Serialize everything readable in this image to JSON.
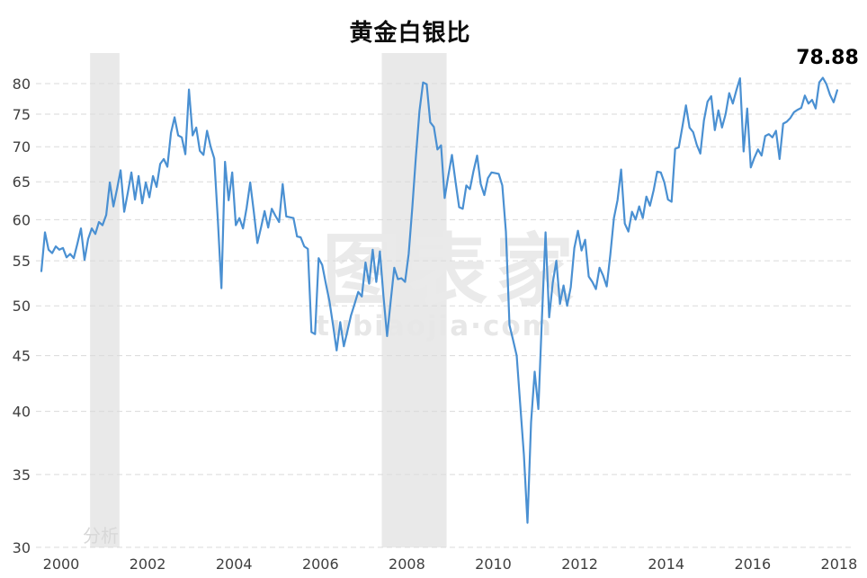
{
  "title": "黄金白银比",
  "current_value_label": "78.88",
  "watermark": {
    "main": "图表家",
    "sub": "tubiaojia·com",
    "corner": "分析"
  },
  "colors": {
    "line": "#4a90d2",
    "grid": "#dadada",
    "band": "#e9e9e9",
    "axis_label": "#3f3f3f",
    "title": "#0d0d0d",
    "background": "#ffffff"
  },
  "chart_data": {
    "type": "line",
    "title": "黄金白银比",
    "xlabel": "",
    "ylabel": "",
    "y_scale": "log",
    "ylim": [
      30,
      85
    ],
    "x_range_years": [
      2000.0,
      2018.5
    ],
    "grid": "horizontal-dashed",
    "legend": "none",
    "y_ticks": [
      80,
      75,
      70,
      65,
      60,
      55,
      50,
      45,
      40,
      35,
      30
    ],
    "x_ticks": [
      "2000",
      "2002",
      "2004",
      "2006",
      "2008",
      "2010",
      "2012",
      "2014",
      "2016",
      "2018"
    ],
    "recession_bands_years": [
      [
        2001.17,
        2001.85
      ],
      [
        2007.92,
        2009.42
      ]
    ],
    "points_per_year": 12,
    "x_start_year": 2000,
    "last_value": 78.88,
    "series": [
      {
        "name": "黄金白银比",
        "values": [
          53.8,
          58.4,
          56.3,
          55.9,
          56.7,
          56.3,
          56.5,
          55.4,
          55.8,
          55.3,
          57.0,
          58.9,
          55.1,
          57.6,
          58.9,
          58.2,
          59.7,
          59.3,
          60.6,
          64.9,
          61.7,
          64.0,
          66.6,
          61.0,
          63.5,
          66.3,
          62.6,
          65.8,
          62.1,
          64.9,
          62.9,
          65.8,
          64.3,
          67.5,
          68.2,
          67.1,
          72.1,
          74.5,
          71.7,
          71.4,
          68.9,
          79.0,
          71.7,
          72.9,
          69.4,
          68.8,
          72.4,
          70.0,
          68.3,
          60.0,
          51.9,
          67.8,
          62.5,
          66.3,
          59.3,
          60.2,
          58.9,
          61.5,
          64.9,
          61.0,
          57.1,
          59.0,
          61.1,
          59.0,
          61.4,
          60.5,
          59.7,
          64.7,
          60.4,
          60.3,
          60.2,
          57.9,
          57.8,
          56.7,
          56.4,
          47.3,
          47.1,
          55.3,
          54.5,
          52.4,
          50.5,
          48.0,
          45.5,
          48.3,
          45.9,
          47.4,
          49.0,
          50.2,
          51.5,
          51.0,
          54.8,
          52.4,
          56.3,
          52.6,
          56.1,
          51.0,
          46.9,
          50.5,
          54.2,
          52.9,
          53.0,
          52.6,
          55.8,
          61.5,
          68.5,
          75.5,
          80.2,
          79.9,
          73.7,
          73.0,
          69.6,
          70.2,
          62.8,
          65.8,
          68.8,
          65.0,
          61.6,
          61.4,
          64.5,
          64.0,
          66.5,
          68.7,
          64.7,
          63.2,
          65.5,
          66.3,
          66.2,
          66.1,
          64.5,
          58.5,
          48.0,
          46.5,
          45.0,
          40.5,
          36.5,
          31.6,
          39.1,
          43.5,
          40.2,
          48.8,
          58.4,
          48.8,
          52.5,
          55.0,
          50.2,
          52.2,
          50.0,
          52.0,
          56.5,
          58.6,
          56.2,
          57.5,
          53.2,
          52.6,
          51.8,
          54.2,
          53.3,
          52.1,
          55.7,
          60.2,
          62.5,
          66.7,
          59.5,
          58.5,
          61.0,
          60.0,
          61.7,
          60.2,
          63.0,
          61.8,
          63.8,
          66.4,
          66.3,
          64.9,
          62.6,
          62.3,
          69.7,
          69.9,
          73.0,
          76.4,
          72.9,
          72.2,
          70.3,
          69.0,
          74.0,
          77.0,
          77.9,
          72.5,
          75.6,
          72.9,
          75.0,
          78.4,
          76.7,
          78.9,
          80.9,
          69.3,
          75.9,
          67.0,
          68.4,
          69.6,
          68.7,
          71.6,
          71.9,
          71.4,
          72.4,
          68.2,
          73.5,
          73.8,
          74.4,
          75.3,
          75.7,
          76.0,
          78.0,
          76.7,
          77.3,
          75.9,
          80.2,
          81.0,
          79.9,
          78.1,
          76.9,
          78.88
        ]
      }
    ]
  }
}
